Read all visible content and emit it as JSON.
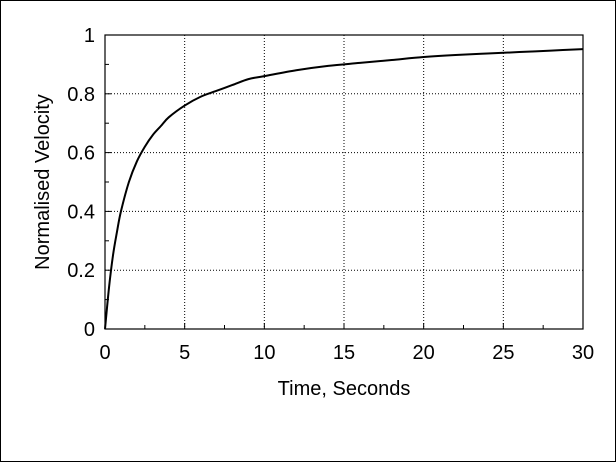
{
  "chart_data": {
    "type": "line",
    "title": "",
    "xlabel": "Time, Seconds",
    "ylabel": "Normalised Velocity",
    "xlim": [
      0,
      30
    ],
    "ylim": [
      0,
      1
    ],
    "x_ticks": [
      0,
      5,
      10,
      15,
      20,
      25,
      30
    ],
    "y_ticks": [
      0,
      0.2,
      0.4,
      0.6,
      0.8,
      1
    ],
    "x_tick_labels": [
      "0",
      "5",
      "10",
      "15",
      "20",
      "25",
      "30"
    ],
    "y_tick_labels": [
      "0",
      "0.2",
      "0.4",
      "0.6",
      "0.8",
      "1"
    ],
    "grid": true,
    "grid_style": "dotted",
    "series": [
      {
        "name": "",
        "color": "#000000",
        "x": [
          0,
          0.25,
          0.5,
          0.75,
          1,
          1.5,
          2,
          2.5,
          3,
          3.5,
          4,
          5,
          6,
          7,
          8,
          9,
          10,
          12,
          14,
          16,
          18,
          20,
          22,
          24,
          26,
          28,
          30
        ],
        "y": [
          0,
          0.14,
          0.25,
          0.33,
          0.4,
          0.5,
          0.57,
          0.62,
          0.66,
          0.69,
          0.72,
          0.76,
          0.79,
          0.81,
          0.83,
          0.85,
          0.86,
          0.88,
          0.895,
          0.905,
          0.915,
          0.925,
          0.932,
          0.937,
          0.942,
          0.947,
          0.952
        ]
      }
    ]
  }
}
